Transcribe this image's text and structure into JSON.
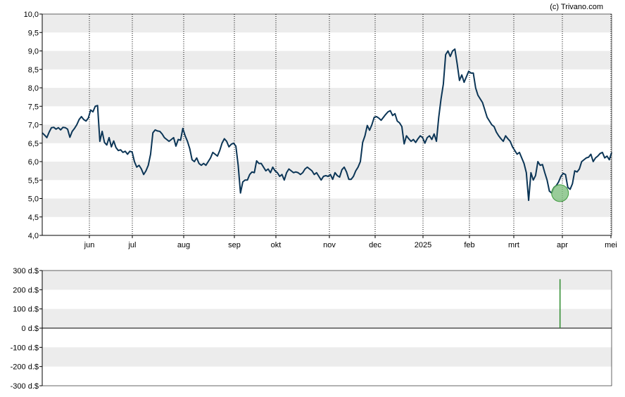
{
  "credit": "(c) Trivano.com",
  "colors": {
    "band": "#ececec",
    "line": "#0b3556",
    "marker_fill": "#7fbf7f",
    "marker_stroke": "#3e9b3e",
    "volume_bar": "#2e8b2e",
    "grid": "#000000",
    "axis": "#000000"
  },
  "chart_data": [
    {
      "type": "line",
      "name": "price",
      "ylim": [
        4.0,
        10.0
      ],
      "y_ticks": [
        "4,0",
        "4,5",
        "5,0",
        "5,5",
        "6,0",
        "6,5",
        "7,0",
        "7,5",
        "8,0",
        "8,5",
        "9,0",
        "9,5",
        "10,0"
      ],
      "x_ticks": [
        "jun",
        "jul",
        "aug",
        "sep",
        "okt",
        "nov",
        "dec",
        "2025",
        "feb",
        "mrt",
        "apr",
        "mei"
      ],
      "grid": "vertical dotted at month ticks, alternating horizontal bands",
      "values": [
        6.78,
        6.72,
        6.65,
        6.8,
        6.92,
        6.93,
        6.88,
        6.92,
        6.86,
        6.93,
        6.92,
        6.88,
        6.66,
        6.82,
        6.9,
        7.0,
        7.14,
        7.22,
        7.14,
        7.1,
        7.18,
        7.4,
        7.35,
        7.5,
        7.52,
        6.55,
        6.82,
        6.52,
        6.45,
        6.65,
        6.4,
        6.56,
        6.38,
        6.3,
        6.32,
        6.25,
        6.28,
        6.2,
        6.28,
        6.26,
        6.0,
        5.85,
        5.9,
        5.8,
        5.65,
        5.75,
        5.9,
        6.2,
        6.78,
        6.86,
        6.83,
        6.82,
        6.75,
        6.65,
        6.6,
        6.55,
        6.6,
        6.65,
        6.42,
        6.6,
        6.58,
        6.9,
        6.7,
        6.55,
        6.35,
        6.05,
        6.0,
        6.1,
        5.95,
        5.9,
        5.95,
        5.9,
        6.0,
        6.1,
        6.25,
        6.2,
        6.15,
        6.3,
        6.5,
        6.62,
        6.55,
        6.4,
        6.47,
        6.5,
        6.42,
        5.9,
        5.15,
        5.45,
        5.5,
        5.5,
        5.65,
        5.72,
        5.7,
        6.02,
        5.95,
        5.95,
        5.85,
        5.75,
        5.8,
        5.7,
        5.85,
        5.75,
        5.7,
        5.6,
        5.65,
        5.5,
        5.7,
        5.8,
        5.75,
        5.7,
        5.72,
        5.7,
        5.65,
        5.7,
        5.8,
        5.85,
        5.8,
        5.75,
        5.65,
        5.7,
        5.6,
        5.5,
        5.6,
        5.62,
        5.6,
        5.65,
        5.52,
        5.7,
        5.62,
        5.58,
        5.78,
        5.85,
        5.72,
        5.52,
        5.52,
        5.6,
        5.75,
        5.85,
        6.0,
        6.52,
        6.7,
        6.98,
        6.85,
        7.0,
        7.2,
        7.22,
        7.18,
        7.12,
        7.2,
        7.28,
        7.35,
        7.38,
        7.25,
        7.3,
        7.1,
        7.05,
        6.95,
        6.48,
        6.7,
        6.62,
        6.55,
        6.6,
        6.52,
        6.62,
        6.7,
        6.65,
        6.5,
        6.65,
        6.7,
        6.6,
        6.75,
        6.55,
        7.2,
        7.7,
        8.1,
        8.9,
        9.0,
        8.85,
        9.0,
        9.05,
        8.65,
        8.2,
        8.35,
        8.15,
        8.3,
        8.45,
        8.4,
        8.4,
        8.0,
        7.8,
        7.7,
        7.6,
        7.4,
        7.2,
        7.1,
        7.0,
        6.95,
        6.8,
        6.7,
        6.62,
        6.55,
        6.7,
        6.62,
        6.55,
        6.4,
        6.3,
        6.2,
        6.25,
        6.1,
        5.95,
        5.7,
        4.95,
        5.7,
        5.5,
        5.62,
        6.0,
        5.9,
        5.92,
        5.7,
        5.5,
        5.2,
        5.15,
        5.3,
        5.35,
        5.45,
        5.6,
        5.68,
        5.65,
        5.3,
        5.25,
        5.4,
        5.75,
        5.72,
        5.8,
        6.0,
        6.05,
        6.1,
        6.12,
        6.2,
        6.0,
        6.1,
        6.15,
        6.22,
        6.25,
        6.1,
        6.15,
        6.05,
        6.25
      ]
    },
    {
      "type": "bar",
      "name": "volume",
      "ylim": [
        -300,
        300
      ],
      "y_ticks": [
        "300 d.$",
        "200 d.$",
        "100 d.$",
        "0 d.$",
        "-100 d.$",
        "-200 d.$",
        "-300 d.$"
      ],
      "bars": [
        {
          "index": 224,
          "value": 255
        }
      ],
      "grid": "alternating horizontal bands"
    }
  ]
}
